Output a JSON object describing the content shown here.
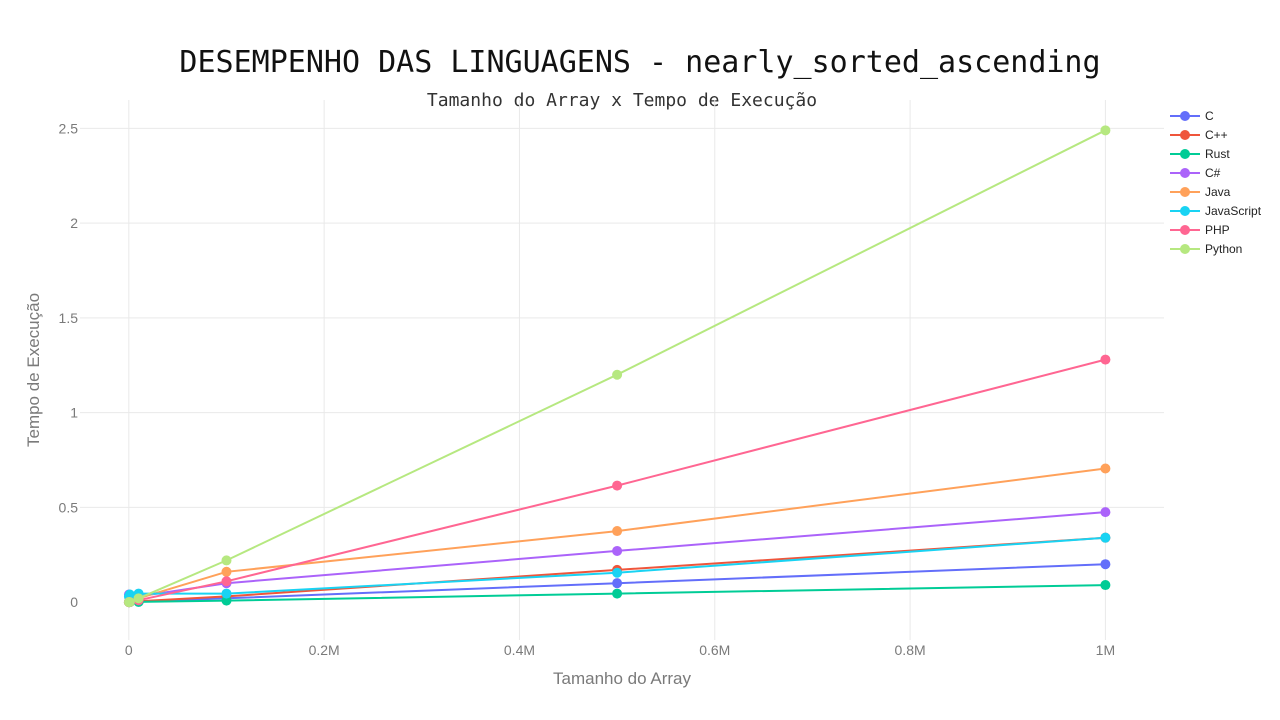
{
  "chart_data": {
    "type": "line",
    "title": "DESEMPENHO DAS LINGUAGENS - nearly_sorted_ascending",
    "subtitle": "Tamanho do Array x Tempo de Execução",
    "xlabel": "Tamanho do Array",
    "ylabel": "Tempo de Execução",
    "xlim": [
      -50000,
      1060000
    ],
    "ylim": [
      -0.2,
      2.65
    ],
    "x_ticks": [
      0,
      200000,
      400000,
      600000,
      800000,
      1000000
    ],
    "x_tick_labels": [
      "0",
      "0.2M",
      "0.4M",
      "0.6M",
      "0.8M",
      "1M"
    ],
    "y_ticks": [
      0,
      0.5,
      1,
      1.5,
      2,
      2.5
    ],
    "y_tick_labels": [
      "0",
      "0.5",
      "1",
      "1.5",
      "2",
      "2.5"
    ],
    "grid": true,
    "legend_position": "top-right",
    "x": [
      100,
      1000,
      10000,
      100000,
      500000,
      1000000
    ],
    "series": [
      {
        "name": "C",
        "color": "#636efa",
        "values": [
          0.0,
          0.0,
          0.002,
          0.02,
          0.1,
          0.2
        ]
      },
      {
        "name": "C++",
        "color": "#ef553b",
        "values": [
          0.0,
          0.0,
          0.004,
          0.03,
          0.17,
          0.34
        ]
      },
      {
        "name": "Rust",
        "color": "#00cc96",
        "values": [
          0.0,
          0.0,
          0.001,
          0.008,
          0.045,
          0.09
        ]
      },
      {
        "name": "C#",
        "color": "#ab63fa",
        "values": [
          0.04,
          0.03,
          0.03,
          0.1,
          0.27,
          0.475
        ]
      },
      {
        "name": "Java",
        "color": "#ffa15a",
        "values": [
          0.0,
          0.002,
          0.02,
          0.16,
          0.375,
          0.705
        ]
      },
      {
        "name": "JavaScript",
        "color": "#19d3f3",
        "values": [
          0.03,
          0.04,
          0.045,
          0.045,
          0.155,
          0.34
        ]
      },
      {
        "name": "PHP",
        "color": "#ff6692",
        "values": [
          0.0,
          0.0,
          0.01,
          0.11,
          0.615,
          1.28
        ]
      },
      {
        "name": "Python",
        "color": "#b6e880",
        "values": [
          0.0,
          0.0,
          0.02,
          0.22,
          1.2,
          2.49
        ]
      }
    ]
  }
}
